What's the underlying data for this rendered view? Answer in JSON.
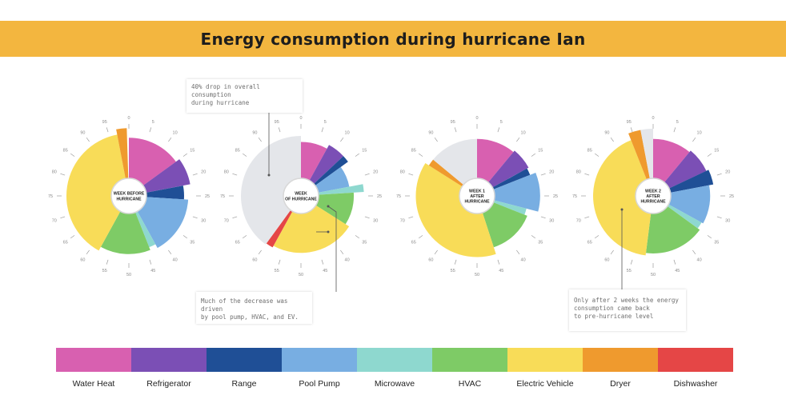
{
  "title": "Energy consumption during hurricane Ian",
  "chart_data": {
    "type": "polar-area",
    "categories": [
      "Water Heat",
      "Refrigerator",
      "Range",
      "Pool Pump",
      "Microwave",
      "HVAC",
      "Electric Vehicle",
      "Dryer",
      "Dishwasher"
    ],
    "colors": [
      "#d860b0",
      "#7b4fb5",
      "#1f4f96",
      "#78aee2",
      "#8ed8cf",
      "#7ecb66",
      "#f8dc58",
      "#ef9a2e",
      "#e54646"
    ],
    "tick_labels": [
      "0",
      "5",
      "10",
      "15",
      "20",
      "25",
      "30",
      "35",
      "40",
      "45",
      "50",
      "55",
      "60",
      "65",
      "70",
      "75",
      "80",
      "85",
      "90",
      "95"
    ],
    "charts": [
      {
        "label_lines": [
          "WEEK BEFORE",
          "HURRICANE"
        ],
        "segments": [
          {
            "category": "Water Heat",
            "start": 0,
            "end": 15,
            "radius": 0.97
          },
          {
            "category": "Refrigerator",
            "start": 15,
            "end": 22,
            "radius": 1.04
          },
          {
            "category": "Range",
            "start": 22,
            "end": 26,
            "radius": 0.92
          },
          {
            "category": "Pool Pump",
            "start": 26,
            "end": 42,
            "radius": 0.99
          },
          {
            "category": "Microwave",
            "start": 42,
            "end": 44,
            "radius": 0.92
          },
          {
            "category": "HVAC",
            "start": 44,
            "end": 58,
            "radius": 0.97
          },
          {
            "category": "Electric Vehicle",
            "start": 58,
            "end": 97,
            "radius": 1.04
          },
          {
            "category": "Dryer",
            "start": 97,
            "end": 99.5,
            "radius": 1.13
          }
        ]
      },
      {
        "label_lines": [
          "WEEK",
          "OF HURRICANE"
        ],
        "segments": [
          {
            "category": "Water Heat",
            "start": 0,
            "end": 8,
            "radius": 0.9
          },
          {
            "category": "Refrigerator",
            "start": 8,
            "end": 13,
            "radius": 0.97
          },
          {
            "category": "Range",
            "start": 13,
            "end": 15,
            "radius": 0.97
          },
          {
            "category": "Pool Pump",
            "start": 15,
            "end": 22,
            "radius": 0.82
          },
          {
            "category": "Microwave",
            "start": 22,
            "end": 24,
            "radius": 1.05
          },
          {
            "category": "HVAC",
            "start": 24,
            "end": 34,
            "radius": 0.88
          },
          {
            "category": "Electric Vehicle",
            "start": 34,
            "end": 58,
            "radius": 0.95
          },
          {
            "category": "Dishwasher",
            "start": 58,
            "end": 60,
            "radius": 0.98
          },
          {
            "category": "Empty",
            "start": 60,
            "end": 100,
            "radius": 1.0
          }
        ]
      },
      {
        "label_lines": [
          "WEEK 1",
          "AFTER",
          "HURRICANE"
        ],
        "segments": [
          {
            "category": "Water Heat",
            "start": 0,
            "end": 11,
            "radius": 0.95
          },
          {
            "category": "Refrigerator",
            "start": 11,
            "end": 17,
            "radius": 0.98
          },
          {
            "category": "Range",
            "start": 17,
            "end": 19,
            "radius": 0.95
          },
          {
            "category": "Pool Pump",
            "start": 19,
            "end": 29,
            "radius": 1.05
          },
          {
            "category": "Microwave",
            "start": 29,
            "end": 31,
            "radius": 0.85
          },
          {
            "category": "HVAC",
            "start": 31,
            "end": 45,
            "radius": 0.9
          },
          {
            "category": "Electric Vehicle",
            "start": 45,
            "end": 84,
            "radius": 1.02
          },
          {
            "category": "Dryer",
            "start": 84,
            "end": 86,
            "radius": 0.95
          },
          {
            "category": "Empty",
            "start": 86,
            "end": 100,
            "radius": 0.95
          }
        ]
      },
      {
        "label_lines": [
          "WEEK 2",
          "AFTER",
          "HURRICANE"
        ],
        "segments": [
          {
            "category": "Water Heat",
            "start": 0,
            "end": 11,
            "radius": 0.95
          },
          {
            "category": "Refrigerator",
            "start": 11,
            "end": 18,
            "radius": 0.98
          },
          {
            "category": "Range",
            "start": 18,
            "end": 22,
            "radius": 1.02
          },
          {
            "category": "Pool Pump",
            "start": 22,
            "end": 33,
            "radius": 0.95
          },
          {
            "category": "Microwave",
            "start": 33,
            "end": 35,
            "radius": 0.92
          },
          {
            "category": "HVAC",
            "start": 35,
            "end": 52,
            "radius": 0.96
          },
          {
            "category": "Electric Vehicle",
            "start": 52,
            "end": 94,
            "radius": 1.0
          },
          {
            "category": "Dryer",
            "start": 94,
            "end": 97,
            "radius": 1.12
          },
          {
            "category": "Empty",
            "start": 97,
            "end": 100,
            "radius": 1.12
          }
        ]
      }
    ]
  },
  "annotations": {
    "drop": "40% drop in overall consumption\nduring hurricane",
    "decrease": "Much of the decrease was driven\nby pool pump, HVAC, and EV.",
    "recovery": "Only after 2 weeks the energy\nconsumption came back\nto pre-hurricane level"
  },
  "legend": [
    {
      "label": "Water Heat",
      "color": "#d860b0"
    },
    {
      "label": "Refrigerator",
      "color": "#7b4fb5"
    },
    {
      "label": "Range",
      "color": "#1f4f96"
    },
    {
      "label": "Pool Pump",
      "color": "#78aee2"
    },
    {
      "label": "Microwave",
      "color": "#8ed8cf"
    },
    {
      "label": "HVAC",
      "color": "#7ecb66"
    },
    {
      "label": "Electric Vehicle",
      "color": "#f8dc58"
    },
    {
      "label": "Dryer",
      "color": "#ef9a2e"
    },
    {
      "label": "Dishwasher",
      "color": "#e54646"
    }
  ]
}
